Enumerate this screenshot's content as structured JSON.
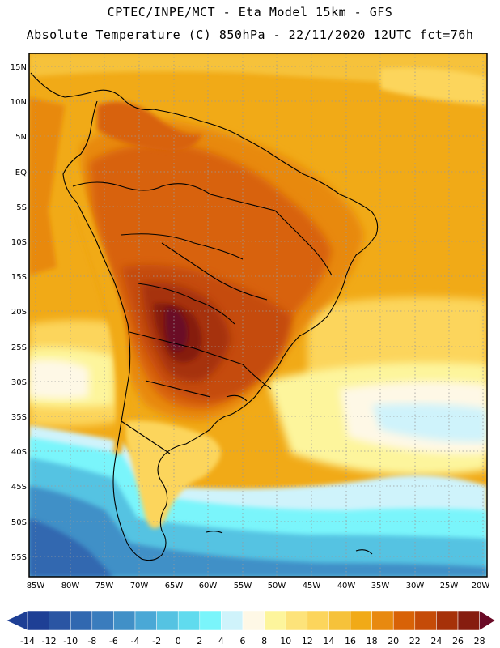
{
  "header": {
    "title_line1": "CPTEC/INPE/MCT -  Eta Model 15km - GFS",
    "title_line2": "Absolute Temperature (C) 850hPa - 22/11/2020 12UTC fct=76h"
  },
  "map": {
    "lat_labels": [
      "15N",
      "10N",
      "5N",
      "EQ",
      "5S",
      "10S",
      "15S",
      "20S",
      "25S",
      "30S",
      "35S",
      "40S",
      "45S",
      "50S",
      "55S"
    ],
    "lon_labels": [
      "85W",
      "80W",
      "75W",
      "70W",
      "65W",
      "60W",
      "55W",
      "50W",
      "45W",
      "40W",
      "35W",
      "30W",
      "25W",
      "20W"
    ]
  },
  "colorbar": {
    "tick_labels": [
      "-14",
      "-12",
      "-10",
      "-8",
      "-6",
      "-4",
      "-2",
      "0",
      "2",
      "4",
      "6",
      "8",
      "10",
      "12",
      "14",
      "16",
      "18",
      "20",
      "22",
      "24",
      "26",
      "28"
    ],
    "colors": [
      "#1e3f95",
      "#2a55a3",
      "#3168b0",
      "#3a7cbd",
      "#4190c7",
      "#4aa8d6",
      "#55c3e2",
      "#60dbee",
      "#7af5fb",
      "#cff3fb",
      "#fef8e6",
      "#fdf59c",
      "#fde37a",
      "#fcd55c",
      "#f6c23a",
      "#f1aa17",
      "#e8890f",
      "#d86207",
      "#c54b08",
      "#a63109",
      "#861d0f",
      "#6a0a26"
    ]
  }
}
